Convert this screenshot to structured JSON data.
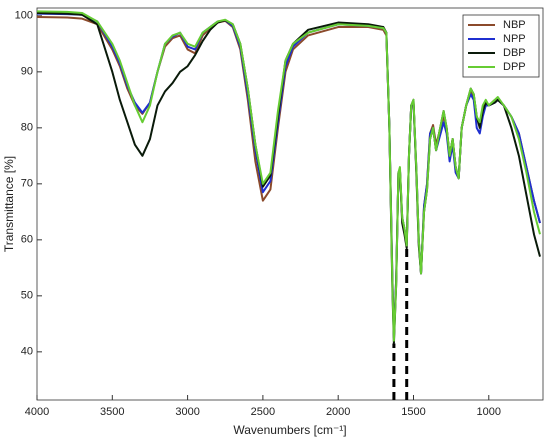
{
  "chart_data": {
    "type": "line",
    "xlabel": "Wavenumbers [cm⁻¹]",
    "ylabel": "Transmittance [%]",
    "x": [
      4000,
      3800,
      3700,
      3600,
      3500,
      3450,
      3400,
      3350,
      3300,
      3250,
      3200,
      3150,
      3100,
      3050,
      3000,
      2950,
      2900,
      2850,
      2800,
      2750,
      2700,
      2650,
      2600,
      2550,
      2500,
      2450,
      2400,
      2350,
      2300,
      2200,
      2000,
      1800,
      1700,
      1680,
      1660,
      1640,
      1630,
      1615,
      1600,
      1590,
      1575,
      1560,
      1545,
      1530,
      1515,
      1500,
      1480,
      1465,
      1450,
      1430,
      1410,
      1390,
      1370,
      1350,
      1330,
      1300,
      1280,
      1260,
      1240,
      1220,
      1200,
      1180,
      1150,
      1120,
      1100,
      1080,
      1060,
      1040,
      1020,
      1000,
      960,
      940,
      900,
      850,
      800,
      750,
      700,
      660
    ],
    "series": [
      {
        "name": "NBP",
        "color": "#8b4a2b",
        "values": [
          99.8,
          99.7,
          99.5,
          98.5,
          94,
          91,
          87,
          84,
          82.5,
          84.5,
          90,
          94.5,
          96,
          96.5,
          94,
          93.3,
          96.5,
          97.8,
          98.8,
          99.1,
          98,
          94,
          85,
          74,
          67,
          69,
          80,
          90,
          94,
          96.5,
          98,
          98,
          97.5,
          96.5,
          80,
          53,
          43,
          53,
          72,
          72.5,
          64,
          62,
          59.5,
          75,
          84,
          84.5,
          72,
          60,
          54,
          66,
          70,
          79,
          80.5,
          77,
          79,
          82,
          80,
          75,
          78,
          73,
          71,
          80,
          84,
          86.5,
          85.5,
          81.5,
          80.5,
          83.5,
          84.5,
          84,
          85,
          85,
          84,
          82,
          79,
          73,
          67,
          63
        ]
      },
      {
        "name": "NPP",
        "color": "#1f2fd0",
        "values": [
          100.4,
          100.3,
          100.2,
          99,
          94.5,
          91.5,
          87.5,
          84.5,
          82.7,
          84.5,
          90,
          95,
          96.3,
          97,
          94.5,
          94,
          97,
          98,
          99,
          99.2,
          98.2,
          94.5,
          86,
          76,
          68.5,
          70.5,
          81,
          91,
          94.5,
          97,
          98.5,
          98.2,
          97.8,
          97,
          80,
          53,
          42.5,
          53,
          72,
          72.5,
          64,
          62,
          59,
          75,
          84,
          84.5,
          72,
          60,
          54,
          66,
          70,
          79,
          80,
          76,
          78,
          81,
          79,
          74,
          77,
          72,
          71,
          80,
          84,
          86,
          85,
          80,
          79,
          82,
          84,
          84,
          84.5,
          85,
          84,
          82,
          79,
          73,
          67,
          63
        ]
      },
      {
        "name": "DBP",
        "color": "#0a1a0a",
        "values": [
          100.5,
          100.4,
          100.2,
          98.5,
          90,
          85,
          81,
          77,
          75,
          78,
          84,
          86.5,
          88,
          90,
          91,
          93,
          95.5,
          97.5,
          98.8,
          99.2,
          98.5,
          95,
          87,
          77,
          69.5,
          71.5,
          82,
          92,
          95,
          97.5,
          98.8,
          98.5,
          98,
          97,
          80,
          51,
          41.5,
          52,
          72,
          72.5,
          63,
          61,
          58.5,
          75,
          84,
          85,
          71,
          59,
          54,
          65,
          69,
          78,
          80,
          76,
          79,
          83,
          80,
          75,
          78,
          73,
          71,
          80,
          84,
          87,
          86,
          82,
          80,
          83,
          84.5,
          84,
          84.5,
          85,
          84,
          80,
          75,
          68,
          61,
          57
        ]
      },
      {
        "name": "DPP",
        "color": "#66cc33",
        "values": [
          100.8,
          100.7,
          100.5,
          99,
          95,
          92,
          88,
          84,
          81,
          84,
          90,
          95,
          96.5,
          97,
          95,
          94.5,
          97,
          98,
          99,
          99.3,
          98.5,
          95,
          87,
          77,
          70,
          72,
          83,
          92,
          95,
          97,
          98.5,
          98.2,
          97.8,
          97,
          80,
          52,
          42,
          52,
          72,
          73,
          64,
          62,
          59,
          75,
          84,
          85,
          72,
          60,
          54,
          65,
          69,
          78,
          80,
          76,
          79,
          83,
          80,
          75,
          78,
          73,
          71,
          80,
          84,
          87,
          86,
          82,
          81,
          84,
          85,
          84,
          85,
          85.5,
          84,
          82,
          78,
          72,
          65,
          61
        ]
      }
    ],
    "reference_lines": [
      {
        "x": 1630,
        "y": 41.5
      },
      {
        "x": 1545,
        "y": 58.5
      }
    ],
    "xlim": [
      4000,
      640
    ],
    "xticks": [
      4000,
      3500,
      3000,
      2500,
      2000,
      1500,
      1000
    ],
    "ylim": [
      31.4,
      101.4
    ],
    "yticks": [
      40,
      50,
      60,
      70,
      80,
      90,
      100
    ],
    "grid": false,
    "legend": "top-right"
  }
}
